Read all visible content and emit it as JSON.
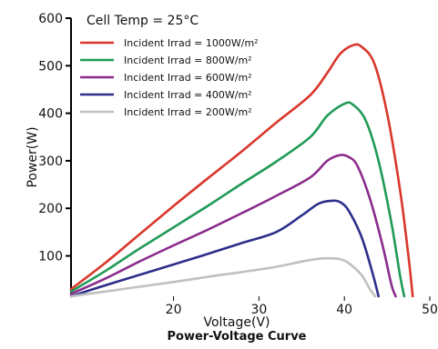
{
  "chart_data": {
    "type": "line",
    "title": "Power-Voltage Curve",
    "xlabel": "Voltage(V)",
    "ylabel": "Power(W)",
    "xlim": [
      8,
      50
    ],
    "ylim": [
      15,
      600
    ],
    "x_ticks": [
      20,
      30,
      40,
      50
    ],
    "x_tick_labels": [
      "20",
      "30",
      "40",
      "50"
    ],
    "y_ticks": [
      100,
      200,
      300,
      400,
      500,
      600
    ],
    "y_tick_labels": [
      "100",
      "200",
      "300",
      "400",
      "500",
      "600"
    ],
    "grid": false,
    "legend_header": "Cell Temp = 25°C",
    "legend_position": "top-left",
    "series": [
      {
        "name": "Incident Irrad = 1000W/m²",
        "color": "#d9372b",
        "points": [
          [
            8,
            30
          ],
          [
            12,
            85
          ],
          [
            16,
            145
          ],
          [
            20,
            205
          ],
          [
            24,
            263
          ],
          [
            28,
            320
          ],
          [
            32,
            380
          ],
          [
            36,
            438
          ],
          [
            38,
            485
          ],
          [
            39.5,
            525
          ],
          [
            41,
            543
          ],
          [
            42,
            540
          ],
          [
            43.5,
            505
          ],
          [
            45,
            400
          ],
          [
            46.5,
            240
          ],
          [
            47.5,
            100
          ],
          [
            48,
            15
          ]
        ]
      },
      {
        "name": "Incident Irrad = 800W/m²",
        "color": "#1f9a55",
        "points": [
          [
            8,
            25
          ],
          [
            12,
            68
          ],
          [
            16,
            115
          ],
          [
            20,
            160
          ],
          [
            24,
            205
          ],
          [
            28,
            252
          ],
          [
            32,
            298
          ],
          [
            36,
            350
          ],
          [
            38,
            395
          ],
          [
            40,
            420
          ],
          [
            41,
            418
          ],
          [
            42.5,
            385
          ],
          [
            44,
            300
          ],
          [
            45.5,
            170
          ],
          [
            46.5,
            60
          ],
          [
            47,
            15
          ]
        ]
      },
      {
        "name": "Incident Irrad = 600W/m²",
        "color": "#8a2c8c",
        "points": [
          [
            8,
            20
          ],
          [
            12,
            52
          ],
          [
            16,
            88
          ],
          [
            20,
            122
          ],
          [
            24,
            155
          ],
          [
            28,
            190
          ],
          [
            32,
            226
          ],
          [
            36,
            265
          ],
          [
            38,
            300
          ],
          [
            39.5,
            312
          ],
          [
            40.5,
            308
          ],
          [
            41.5,
            290
          ],
          [
            43,
            220
          ],
          [
            44.5,
            120
          ],
          [
            45.5,
            40
          ],
          [
            46,
            15
          ]
        ]
      },
      {
        "name": "Incident Irrad = 400W/m²",
        "color": "#2c2f8a",
        "points": [
          [
            8,
            15
          ],
          [
            12,
            38
          ],
          [
            16,
            60
          ],
          [
            20,
            82
          ],
          [
            24,
            104
          ],
          [
            28,
            127
          ],
          [
            32,
            150
          ],
          [
            35,
            185
          ],
          [
            37,
            210
          ],
          [
            38.5,
            216
          ],
          [
            39.5,
            213
          ],
          [
            40.5,
            195
          ],
          [
            42,
            140
          ],
          [
            43.2,
            70
          ],
          [
            44,
            15
          ]
        ]
      },
      {
        "name": "Incident Irrad = 200W/m²",
        "color": "#c0c0c0",
        "points": [
          [
            8,
            15
          ],
          [
            12,
            25
          ],
          [
            16,
            35
          ],
          [
            20,
            45
          ],
          [
            24,
            56
          ],
          [
            28,
            66
          ],
          [
            32,
            77
          ],
          [
            35,
            88
          ],
          [
            37,
            94
          ],
          [
            38.5,
            95
          ],
          [
            39.5,
            93
          ],
          [
            40.5,
            85
          ],
          [
            42,
            60
          ],
          [
            43,
            30
          ],
          [
            43.6,
            15
          ]
        ]
      }
    ]
  }
}
